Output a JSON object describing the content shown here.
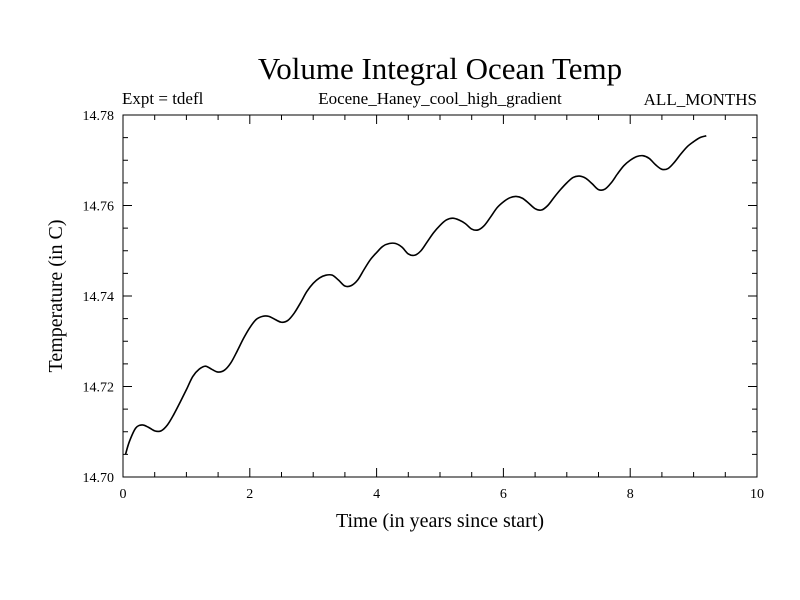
{
  "chart_data": {
    "type": "line",
    "title": "Volume Integral Ocean Temp",
    "subtitle_left": "Expt = tdefl",
    "subtitle_center": "Eocene_Haney_cool_high_gradient",
    "subtitle_right": "ALL_MONTHS",
    "xlabel": "Time (in years since start)",
    "ylabel": "Temperature (in C)",
    "xlim": [
      0,
      10
    ],
    "ylim": [
      14.7,
      14.78
    ],
    "x_ticks": [
      0,
      2,
      4,
      6,
      8,
      10
    ],
    "x_tick_labels": [
      "0",
      "2",
      "4",
      "6",
      "8",
      "10"
    ],
    "y_ticks": [
      14.7,
      14.72,
      14.74,
      14.76,
      14.78
    ],
    "y_tick_labels": [
      "14.70",
      "14.72",
      "14.74",
      "14.76",
      "14.78"
    ],
    "grid": false,
    "series": [
      {
        "color": "#000000",
        "x": [
          0.04,
          0.1,
          0.2,
          0.3,
          0.4,
          0.5,
          0.6,
          0.7,
          0.8,
          0.9,
          1.0,
          1.1,
          1.2,
          1.3,
          1.4,
          1.5,
          1.6,
          1.7,
          1.8,
          1.9,
          2.0,
          2.1,
          2.2,
          2.3,
          2.4,
          2.5,
          2.6,
          2.7,
          2.8,
          2.9,
          3.0,
          3.1,
          3.2,
          3.3,
          3.4,
          3.5,
          3.6,
          3.7,
          3.8,
          3.9,
          4.0,
          4.1,
          4.2,
          4.3,
          4.4,
          4.5,
          4.6,
          4.7,
          4.8,
          4.9,
          5.0,
          5.1,
          5.2,
          5.3,
          5.4,
          5.5,
          5.6,
          5.7,
          5.8,
          5.9,
          6.0,
          6.1,
          6.2,
          6.3,
          6.4,
          6.5,
          6.6,
          6.7,
          6.8,
          6.9,
          7.0,
          7.1,
          7.2,
          7.3,
          7.4,
          7.5,
          7.6,
          7.7,
          7.8,
          7.9,
          8.0,
          8.1,
          8.2,
          8.3,
          8.4,
          8.5,
          8.6,
          8.7,
          8.8,
          8.9,
          9.0,
          9.1,
          9.2
        ],
        "y": [
          14.705,
          14.7078,
          14.7108,
          14.7115,
          14.711,
          14.7102,
          14.7102,
          14.7115,
          14.7138,
          14.7165,
          14.7193,
          14.7222,
          14.7238,
          14.7245,
          14.7238,
          14.7232,
          14.7236,
          14.7252,
          14.7278,
          14.7306,
          14.733,
          14.7348,
          14.7355,
          14.7355,
          14.7348,
          14.7342,
          14.7346,
          14.7362,
          14.7385,
          14.741,
          14.7428,
          14.744,
          14.7446,
          14.7446,
          14.7435,
          14.7422,
          14.7423,
          14.7435,
          14.7458,
          14.748,
          14.7496,
          14.751,
          14.7516,
          14.7516,
          14.7508,
          14.7493,
          14.749,
          14.75,
          14.752,
          14.754,
          14.7556,
          14.7568,
          14.7572,
          14.7568,
          14.756,
          14.7548,
          14.7546,
          14.7556,
          14.7575,
          14.7595,
          14.7608,
          14.7617,
          14.762,
          14.7616,
          14.7605,
          14.7593,
          14.759,
          14.76,
          14.7618,
          14.7635,
          14.765,
          14.7662,
          14.7665,
          14.766,
          14.7648,
          14.7635,
          14.7636,
          14.765,
          14.767,
          14.7688,
          14.77,
          14.7708,
          14.771,
          14.7704,
          14.769,
          14.768,
          14.7682,
          14.7696,
          14.7714,
          14.773,
          14.7741,
          14.775,
          14.7754
        ]
      }
    ]
  }
}
